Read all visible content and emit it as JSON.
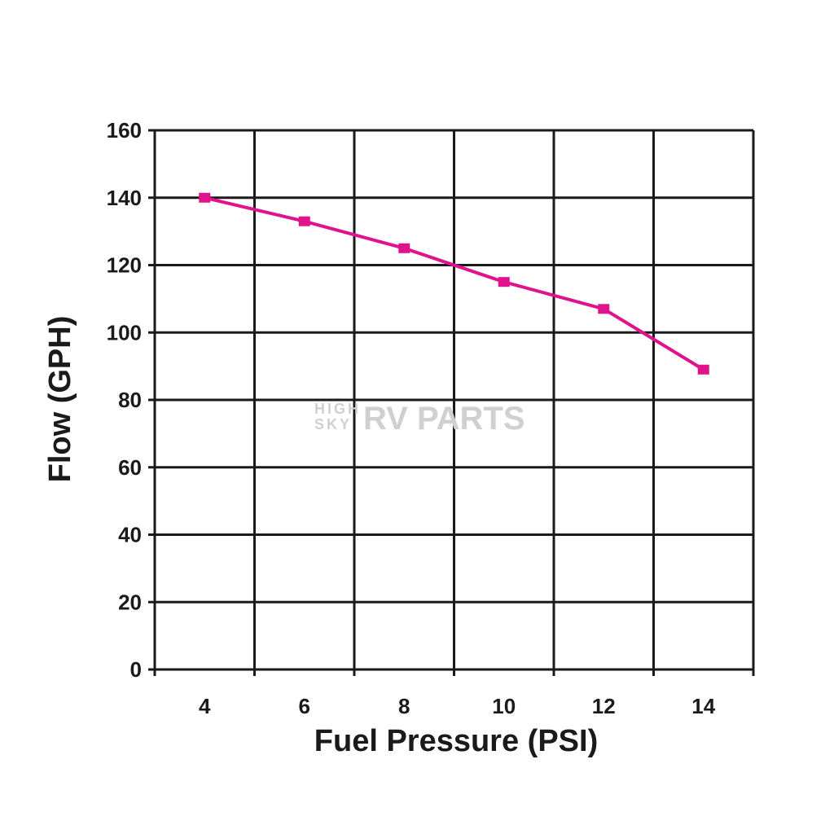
{
  "chart_data": {
    "type": "line",
    "title": "",
    "xlabel": "Fuel Pressure (PSI)",
    "ylabel": "Flow (GPH)",
    "xlim": [
      3,
      15
    ],
    "ylim": [
      0,
      160
    ],
    "x_ticks": [
      4,
      6,
      8,
      10,
      12,
      14
    ],
    "y_ticks": [
      0,
      20,
      40,
      60,
      80,
      100,
      120,
      140,
      160
    ],
    "grid": true,
    "legend": "none",
    "series": [
      {
        "color": "#e0138c",
        "x": [
          4,
          6,
          8,
          10,
          12,
          14
        ],
        "y": [
          140,
          133,
          125,
          115,
          107,
          89
        ]
      }
    ]
  },
  "watermark": {
    "small_line1": "HIGH",
    "small_line2": "SKY",
    "big": "RV PARTS"
  },
  "colors": {
    "grid": "#1a1a1a",
    "line": "#e0138c",
    "watermark": "#d0d0d0"
  }
}
